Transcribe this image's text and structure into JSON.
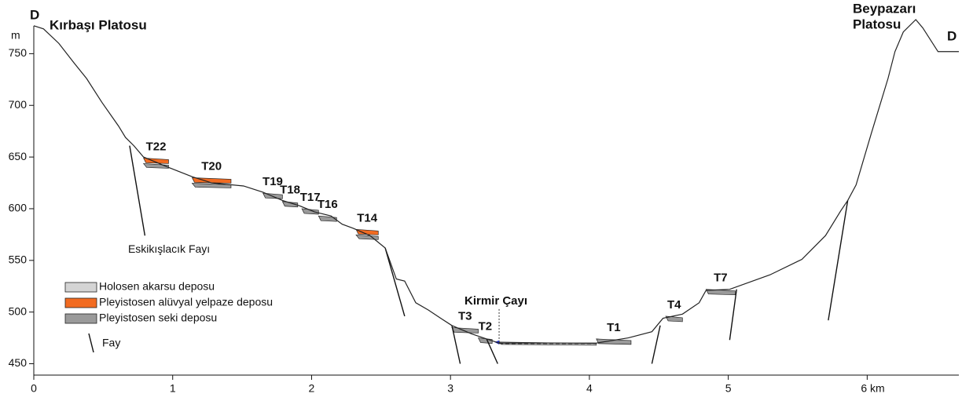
{
  "chart_data": {
    "type": "line",
    "title_left": "Kırbaşı Platosu",
    "title_right": [
      "Beypazarı",
      "Platosu"
    ],
    "section_start": "D",
    "section_end": "D",
    "ylabel": "m",
    "x": [
      0,
      0.07,
      0.18,
      0.29,
      0.38,
      0.49,
      0.61,
      0.66,
      0.72,
      0.79,
      0.97,
      1.14,
      1.28,
      1.51,
      1.65,
      1.79,
      1.91,
      2.02,
      2.14,
      2.22,
      2.3,
      2.42,
      2.53,
      2.61,
      2.67,
      2.75,
      2.84,
      2.93,
      3.01,
      3.15,
      3.26,
      3.35,
      4.05,
      4.28,
      4.45,
      4.53,
      4.67,
      4.79,
      4.84,
      5.01,
      5.3,
      5.53,
      5.7,
      5.81,
      5.86,
      5.92,
      6.03,
      6.15,
      6.2,
      6.26,
      6.35,
      6.4,
      6.51,
      6.66
    ],
    "series": [
      {
        "color": "#222222",
        "values": [
          777,
          774,
          760,
          741,
          726,
          703,
          680,
          669,
          661,
          650,
          640,
          631,
          625,
          622,
          616,
          608,
          603,
          597,
          593,
          585,
          581,
          574,
          562,
          532,
          530,
          509,
          502,
          494,
          487,
          479,
          474,
          470,
          470,
          475,
          481,
          494,
          498,
          509,
          521,
          522,
          536,
          551,
          574,
          598,
          608,
          623,
          673,
          726,
          752,
          771,
          783,
          775,
          752,
          752
        ]
      }
    ],
    "xlim": [
      0,
      6.66
    ],
    "ylim": [
      439,
      786
    ],
    "xticks": [
      0,
      1,
      2,
      3,
      4,
      5,
      {
        "value": 6,
        "label": "6 km"
      }
    ],
    "yticks": [
      450,
      500,
      550,
      600,
      650,
      700,
      750
    ],
    "legend": [
      {
        "name": "Holosen akarsu deposu",
        "color": "#d4d4d4"
      },
      {
        "name": "Pleyistosen alüvyal yelpaze deposu",
        "color": "#f26b21"
      },
      {
        "name": "Pleyistosen seki deposu",
        "color": "#9a9a9a"
      }
    ],
    "fault_legend": "Fay",
    "terraces": [
      {
        "label": "T22",
        "x": [
          0.79,
          0.97
        ],
        "y": 649,
        "deposit": 1
      },
      {
        "label": "T20",
        "x": [
          1.14,
          1.42
        ],
        "y": 630,
        "deposit": 1
      },
      {
        "label": "T19",
        "x": [
          1.65,
          1.79
        ],
        "y": 615,
        "deposit": 2
      },
      {
        "label": "T18",
        "x": [
          1.79,
          1.9
        ],
        "y": 607,
        "deposit": 2
      },
      {
        "label": "T17",
        "x": [
          1.93,
          2.05
        ],
        "y": 600,
        "deposit": 2
      },
      {
        "label": "T16",
        "x": [
          2.05,
          2.18
        ],
        "y": 593,
        "deposit": 2
      },
      {
        "label": "T14",
        "x": [
          2.32,
          2.48
        ],
        "y": 580,
        "deposit": 1
      },
      {
        "label": "T3",
        "x": [
          3.01,
          3.2
        ],
        "y": 485,
        "deposit": 2
      },
      {
        "label": "T2",
        "x": [
          3.2,
          3.3
        ],
        "y": 475,
        "deposit": 2
      },
      {
        "x": [
          3.35,
          4.05
        ],
        "y": 471,
        "deposit": 0
      },
      {
        "label": "T1",
        "x": [
          4.05,
          4.3
        ],
        "y": 474,
        "deposit": 2
      },
      {
        "label": "T4",
        "x": [
          4.55,
          4.67
        ],
        "y": 496,
        "deposit": 2
      },
      {
        "label": "T7",
        "x": [
          4.84,
          5.05
        ],
        "y": 522,
        "deposit": 2
      }
    ],
    "faults": [
      [
        0.69,
        661,
        0.8,
        574
      ],
      [
        2.53,
        562,
        2.67,
        496
      ],
      [
        3.01,
        487,
        3.07,
        450
      ],
      [
        3.26,
        474,
        3.34,
        450
      ],
      [
        4.51,
        487,
        4.45,
        450
      ],
      [
        5.06,
        522,
        5.01,
        473
      ],
      [
        5.86,
        608,
        5.72,
        492
      ]
    ],
    "fault_name": {
      "text": "Eskikışlacık Fayı",
      "x": 0.69,
      "y": 565
    },
    "river": {
      "text": "Kirmir Çayı",
      "x": 3.35,
      "y": 471
    }
  }
}
